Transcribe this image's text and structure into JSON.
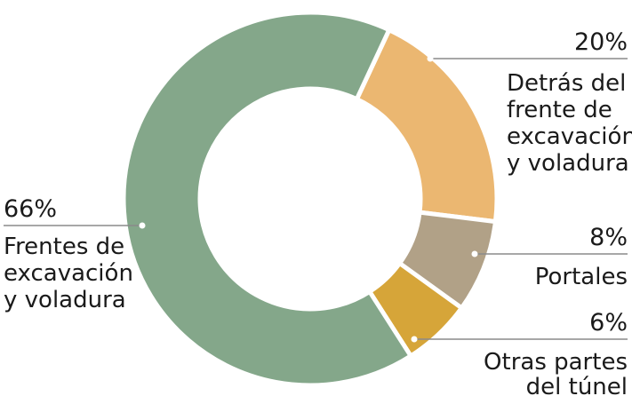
{
  "chart_data": {
    "type": "pie",
    "donut": true,
    "slices": [
      {
        "label": "Frentes de excavación y voladura",
        "label_lines": [
          "Frentes de",
          "excavación",
          "y voladura"
        ],
        "value": 66,
        "value_label": "66%",
        "color": "#84a78a"
      },
      {
        "label": "Detrás del frente de excavación y voladura",
        "label_lines": [
          "Detrás del",
          "frente de",
          "excavación",
          "y voladura"
        ],
        "value": 20,
        "value_label": "20%",
        "color": "#ebb771"
      },
      {
        "label": "Portales",
        "label_lines": [
          "Portales"
        ],
        "value": 8,
        "value_label": "8%",
        "color": "#b1a187"
      },
      {
        "label": "Otras partes del túnel",
        "label_lines": [
          "Otras partes",
          "del túnel"
        ],
        "value": 6,
        "value_label": "6%",
        "color": "#d6a539"
      }
    ],
    "leader_color": "#8a8a8a"
  }
}
